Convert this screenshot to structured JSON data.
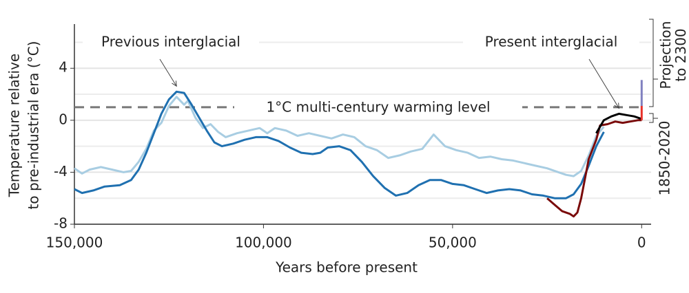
{
  "chart_data": {
    "type": "line",
    "x_label": "Years before present",
    "y_label": [
      "Temperature relative",
      "to pre-industrial era (°C)"
    ],
    "xlim": [
      150000,
      -2500
    ],
    "ylim": [
      -8,
      7.4
    ],
    "xticks": [
      {
        "value": 150000,
        "label": "150,000"
      },
      {
        "value": 100000,
        "label": "100,000"
      },
      {
        "value": 50000,
        "label": "50,000"
      },
      0
    ],
    "yticks": [
      4,
      0,
      -4,
      -8
    ],
    "yminor": [
      6,
      2,
      -2,
      -6
    ],
    "grid": true,
    "reference_line": {
      "value": 1,
      "label": "1°C multi-century warming level",
      "color": "#777777"
    },
    "annotations": [
      {
        "text": "Previous interglacial",
        "x": 123000,
        "y": 2.2
      },
      {
        "text": "Present interglacial",
        "x": 6000,
        "y": 0.5
      }
    ],
    "series": [
      {
        "color": "#a8cde2",
        "x": [
          150000,
          148000,
          146000,
          143000,
          140000,
          137000,
          135000,
          133000,
          131000,
          129000,
          127000,
          125000,
          123000,
          121000,
          120000,
          118000,
          116000,
          114000,
          112000,
          110000,
          107000,
          104000,
          101000,
          99000,
          97000,
          94000,
          91000,
          88000,
          85000,
          82000,
          79000,
          76000,
          73000,
          70000,
          67000,
          64000,
          61000,
          58000,
          55000,
          52000,
          49000,
          46000,
          43000,
          40000,
          37000,
          34000,
          31000,
          28000,
          25000,
          22000,
          20000,
          18000,
          16000,
          14000,
          12000,
          10000
        ],
        "values": [
          -3.7,
          -4.1,
          -3.8,
          -3.6,
          -3.8,
          -4.0,
          -3.9,
          -3.2,
          -2.2,
          -0.8,
          -0.2,
          1.1,
          1.8,
          1.2,
          1.5,
          0.2,
          -0.6,
          -0.3,
          -0.9,
          -1.3,
          -1.0,
          -0.8,
          -0.6,
          -1.0,
          -0.6,
          -0.8,
          -1.2,
          -1.0,
          -1.2,
          -1.4,
          -1.1,
          -1.3,
          -2.0,
          -2.3,
          -2.9,
          -2.7,
          -2.4,
          -2.2,
          -1.1,
          -2.0,
          -2.3,
          -2.5,
          -2.9,
          -2.8,
          -3.0,
          -3.1,
          -3.3,
          -3.5,
          -3.7,
          -4.0,
          -4.2,
          -4.3,
          -3.9,
          -2.7,
          -1.2,
          -0.5
        ]
      },
      {
        "color": "#1f70b0",
        "x": [
          150000,
          148000,
          145000,
          142000,
          138000,
          135000,
          133000,
          131000,
          129000,
          127000,
          125000,
          123000,
          121000,
          119000,
          117000,
          115000,
          113000,
          111000,
          108000,
          105000,
          102000,
          99000,
          96000,
          93000,
          90000,
          87000,
          85000,
          83000,
          80000,
          77000,
          74000,
          71000,
          68000,
          65000,
          62000,
          59000,
          56000,
          53000,
          50000,
          47000,
          44000,
          41000,
          38000,
          35000,
          32000,
          29000,
          26000,
          23000,
          20000,
          18000,
          16000,
          14000,
          12000,
          10000
        ],
        "values": [
          -5.3,
          -5.6,
          -5.4,
          -5.1,
          -5.0,
          -4.6,
          -3.8,
          -2.5,
          -1.0,
          0.5,
          1.6,
          2.2,
          2.1,
          1.2,
          0.2,
          -0.8,
          -1.7,
          -2.0,
          -1.8,
          -1.5,
          -1.3,
          -1.3,
          -1.6,
          -2.1,
          -2.5,
          -2.6,
          -2.5,
          -2.1,
          -2.0,
          -2.3,
          -3.2,
          -4.3,
          -5.2,
          -5.8,
          -5.6,
          -5.0,
          -4.6,
          -4.6,
          -4.9,
          -5.0,
          -5.3,
          -5.6,
          -5.4,
          -5.3,
          -5.4,
          -5.7,
          -5.8,
          -6.0,
          -6.0,
          -5.7,
          -4.9,
          -3.5,
          -2.0,
          -0.9
        ]
      },
      {
        "color": "#7a0a0a",
        "x": [
          25000,
          23000,
          21000,
          19000,
          18000,
          17000,
          16000,
          15000,
          14000,
          12000,
          11000,
          9000,
          7000,
          5000,
          3000,
          1000,
          0
        ],
        "values": [
          -6.0,
          -6.5,
          -7.0,
          -7.2,
          -7.4,
          -7.1,
          -6.0,
          -4.5,
          -3.0,
          -1.5,
          -0.4,
          -0.3,
          -0.1,
          -0.2,
          -0.1,
          0.0,
          0.0
        ]
      },
      {
        "color": "#000000",
        "x": [
          12000,
          11000,
          10000,
          8000,
          6000,
          4000,
          2000,
          0
        ],
        "values": [
          -1.0,
          -0.5,
          0.0,
          0.3,
          0.5,
          0.4,
          0.3,
          0.1
        ]
      },
      {
        "name": "1850-2020",
        "color": "#e8312a",
        "x": [
          0,
          0
        ],
        "values": [
          0,
          1.1
        ]
      },
      {
        "name": "Projection to 2300",
        "color": "#8080c0",
        "x": [
          0,
          0
        ],
        "values": [
          1.1,
          3.1
        ]
      }
    ]
  }
}
